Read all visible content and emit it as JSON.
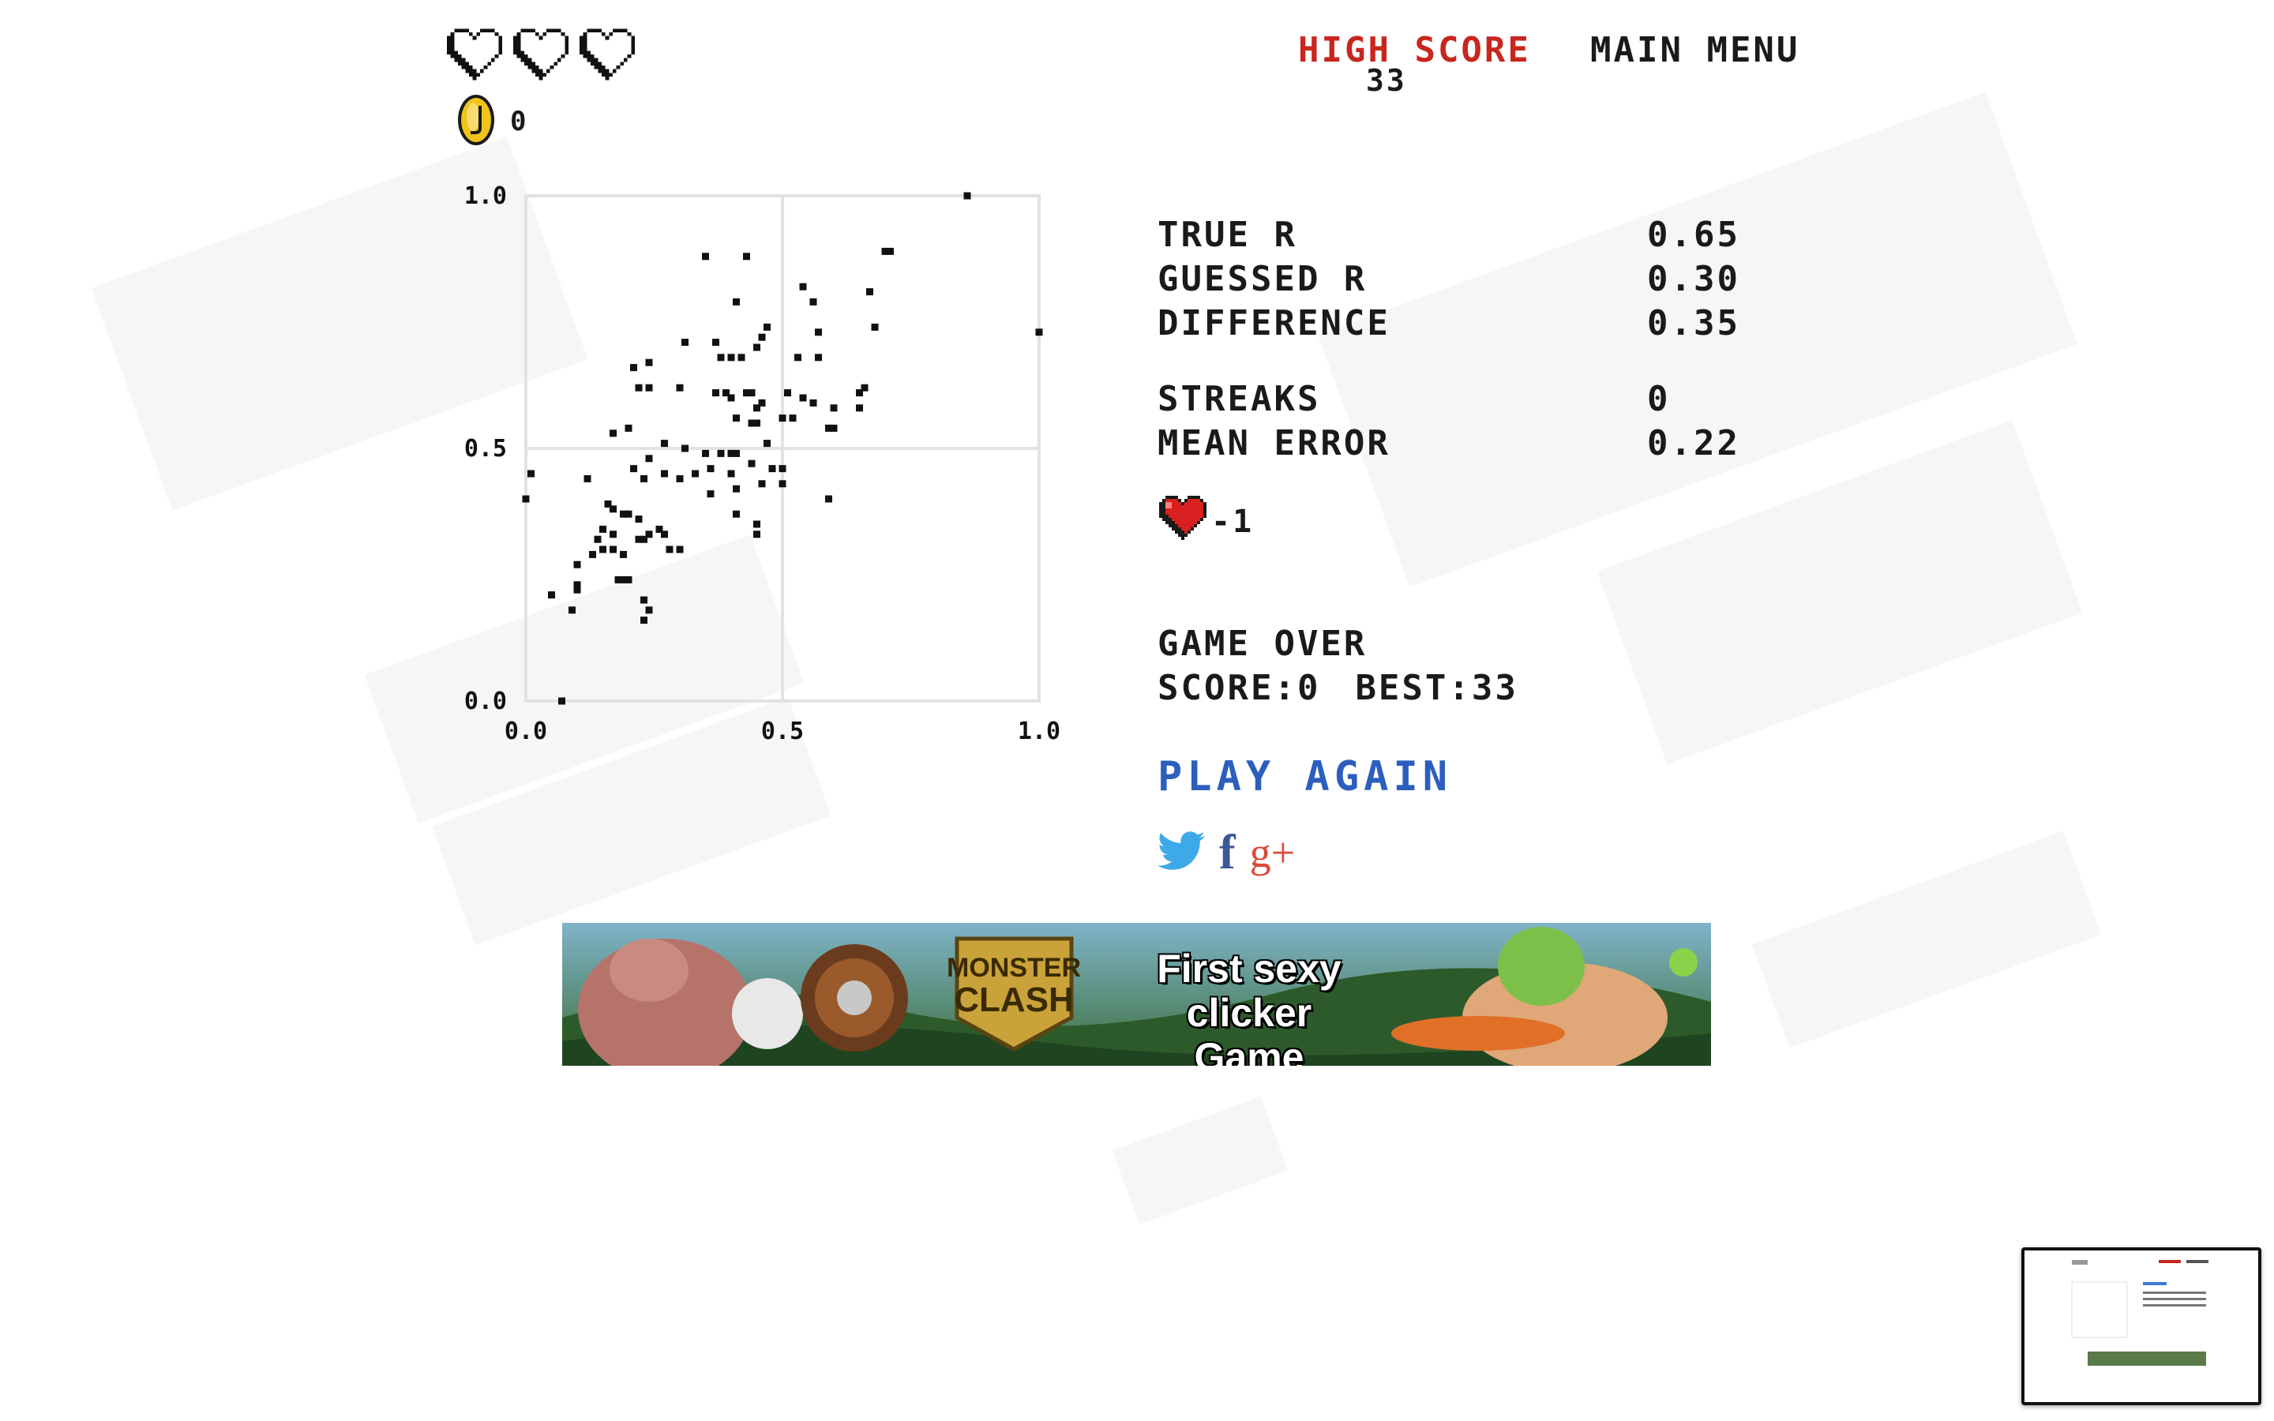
{
  "status": {
    "lives_total": 3,
    "lives_remaining": 0,
    "coins": "0"
  },
  "header": {
    "high_score_label": "HIGH SCORE",
    "high_score_value": "33",
    "main_menu_label": "MAIN MENU"
  },
  "chart_data": {
    "type": "scatter",
    "title": "",
    "xlabel": "",
    "ylabel": "",
    "xlim": [
      0,
      1
    ],
    "ylim": [
      0,
      1
    ],
    "xticks": [
      "0.0",
      "0.5",
      "1.0"
    ],
    "yticks": [
      "0.0",
      "0.5",
      "1.0"
    ],
    "grid": true,
    "points": [
      [
        0.86,
        1.0
      ],
      [
        0.35,
        0.88
      ],
      [
        0.43,
        0.88
      ],
      [
        0.7,
        0.89
      ],
      [
        0.71,
        0.89
      ],
      [
        0.67,
        0.81
      ],
      [
        0.54,
        0.82
      ],
      [
        0.56,
        0.79
      ],
      [
        0.41,
        0.79
      ],
      [
        0.47,
        0.74
      ],
      [
        0.57,
        0.73
      ],
      [
        0.68,
        0.74
      ],
      [
        0.31,
        0.71
      ],
      [
        0.37,
        0.71
      ],
      [
        0.46,
        0.72
      ],
      [
        0.45,
        0.7
      ],
      [
        0.53,
        0.68
      ],
      [
        0.57,
        0.68
      ],
      [
        0.21,
        0.66
      ],
      [
        0.24,
        0.67
      ],
      [
        0.38,
        0.68
      ],
      [
        0.4,
        0.68
      ],
      [
        0.42,
        0.68
      ],
      [
        0.22,
        0.62
      ],
      [
        0.24,
        0.62
      ],
      [
        0.3,
        0.62
      ],
      [
        0.37,
        0.61
      ],
      [
        0.39,
        0.61
      ],
      [
        0.4,
        0.6
      ],
      [
        0.43,
        0.61
      ],
      [
        0.44,
        0.61
      ],
      [
        0.46,
        0.59
      ],
      [
        0.45,
        0.58
      ],
      [
        0.51,
        0.61
      ],
      [
        0.54,
        0.6
      ],
      [
        0.56,
        0.59
      ],
      [
        0.6,
        0.58
      ],
      [
        0.65,
        0.61
      ],
      [
        0.66,
        0.62
      ],
      [
        0.65,
        0.58
      ],
      [
        0.41,
        0.56
      ],
      [
        0.44,
        0.55
      ],
      [
        0.45,
        0.55
      ],
      [
        0.5,
        0.56
      ],
      [
        0.52,
        0.56
      ],
      [
        0.59,
        0.54
      ],
      [
        0.6,
        0.54
      ],
      [
        0.17,
        0.53
      ],
      [
        0.2,
        0.54
      ],
      [
        0.27,
        0.51
      ],
      [
        0.31,
        0.5
      ],
      [
        0.35,
        0.49
      ],
      [
        0.38,
        0.49
      ],
      [
        0.4,
        0.49
      ],
      [
        0.41,
        0.49
      ],
      [
        0.47,
        0.51
      ],
      [
        0.48,
        0.46
      ],
      [
        0.5,
        0.46
      ],
      [
        0.44,
        0.47
      ],
      [
        0.36,
        0.46
      ],
      [
        0.4,
        0.45
      ],
      [
        0.21,
        0.46
      ],
      [
        0.24,
        0.48
      ],
      [
        0.23,
        0.44
      ],
      [
        0.27,
        0.45
      ],
      [
        0.3,
        0.44
      ],
      [
        0.33,
        0.45
      ],
      [
        0.36,
        0.41
      ],
      [
        0.41,
        0.42
      ],
      [
        0.46,
        0.43
      ],
      [
        0.5,
        0.43
      ],
      [
        0.01,
        0.45
      ],
      [
        0.0,
        0.4
      ],
      [
        0.12,
        0.44
      ],
      [
        0.16,
        0.39
      ],
      [
        0.17,
        0.38
      ],
      [
        0.19,
        0.37
      ],
      [
        0.2,
        0.37
      ],
      [
        0.15,
        0.34
      ],
      [
        0.17,
        0.33
      ],
      [
        0.22,
        0.36
      ],
      [
        0.24,
        0.33
      ],
      [
        0.26,
        0.34
      ],
      [
        0.27,
        0.33
      ],
      [
        0.14,
        0.32
      ],
      [
        0.15,
        0.3
      ],
      [
        0.17,
        0.3
      ],
      [
        0.19,
        0.29
      ],
      [
        0.22,
        0.32
      ],
      [
        0.23,
        0.32
      ],
      [
        0.28,
        0.3
      ],
      [
        0.3,
        0.3
      ],
      [
        0.13,
        0.29
      ],
      [
        0.41,
        0.37
      ],
      [
        0.45,
        0.35
      ],
      [
        0.45,
        0.33
      ],
      [
        0.59,
        0.4
      ],
      [
        0.1,
        0.27
      ],
      [
        0.18,
        0.24
      ],
      [
        0.19,
        0.24
      ],
      [
        0.2,
        0.24
      ],
      [
        0.1,
        0.23
      ],
      [
        0.05,
        0.21
      ],
      [
        0.1,
        0.22
      ],
      [
        0.23,
        0.2
      ],
      [
        0.24,
        0.18
      ],
      [
        0.09,
        0.18
      ],
      [
        0.23,
        0.16
      ],
      [
        0.07,
        0.0
      ],
      [
        1.0,
        0.73
      ]
    ]
  },
  "stats": [
    {
      "label": "TRUE R",
      "value": "0.65"
    },
    {
      "label": "GUESSED R",
      "value": "0.30"
    },
    {
      "label": "DIFFERENCE",
      "value": "0.35"
    },
    {
      "label": "STREAKS",
      "value": "0"
    },
    {
      "label": "MEAN ERROR",
      "value": "0.22"
    }
  ],
  "life_change": "-1",
  "game_over": {
    "title": "GAME OVER",
    "score_text": "SCORE:0",
    "best_text": "BEST:33"
  },
  "play_again_label": "PLAY AGAIN",
  "social": {
    "facebook_glyph": "f",
    "google_plus_glyph": "g+"
  },
  "ad": {
    "logo_line1": "MONSTER",
    "logo_line2": "CLASH",
    "tagline_1": "First sexy",
    "tagline_2": "clicker Game"
  },
  "colors": {
    "high_score": "#c8261e",
    "play_again": "#2c5fbd",
    "heart": "#d92020",
    "coin": "#f0c419"
  }
}
